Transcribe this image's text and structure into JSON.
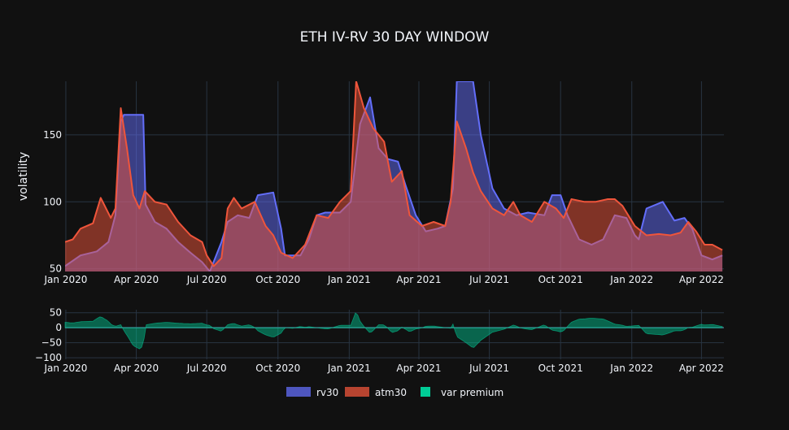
{
  "chart_data": {
    "type": "area",
    "title": "ETH IV-RV 30 DAY WINDOW",
    "colors": {
      "rv30": "#636efa",
      "atm30": "#ef553b",
      "premium": "#00cc96",
      "background": "#111111",
      "grid": "#283442"
    },
    "panels": {
      "main": {
        "ylabel": "volatility",
        "ylim": [
          48,
          190
        ],
        "yticks": [
          50,
          100,
          150
        ]
      },
      "sub": {
        "ylim": [
          -105,
          60
        ],
        "yticks": [
          50,
          0,
          -50,
          -100
        ],
        "ytick_labels": [
          "50",
          "0",
          "−50",
          "−100"
        ]
      }
    },
    "x_range": [
      "2019-12-31",
      "2022-04-30"
    ],
    "x_ticks": [
      {
        "date": "2020-01-01",
        "label": "Jan 2020"
      },
      {
        "date": "2020-04-01",
        "label": "Apr 2020"
      },
      {
        "date": "2020-07-01",
        "label": "Jul 2020"
      },
      {
        "date": "2020-10-01",
        "label": "Oct 2020"
      },
      {
        "date": "2021-01-01",
        "label": "Jan 2021"
      },
      {
        "date": "2021-04-01",
        "label": "Apr 2021"
      },
      {
        "date": "2021-07-01",
        "label": "Jul 2021"
      },
      {
        "date": "2021-10-01",
        "label": "Oct 2021"
      },
      {
        "date": "2022-01-01",
        "label": "Jan 2022"
      },
      {
        "date": "2022-04-01",
        "label": "Apr 2022"
      }
    ],
    "series": [
      {
        "name": "rv30",
        "points": [
          [
            "2019-12-31",
            52
          ],
          [
            "2020-01-20",
            60
          ],
          [
            "2020-02-10",
            63
          ],
          [
            "2020-02-25",
            70
          ],
          [
            "2020-03-05",
            90
          ],
          [
            "2020-03-12",
            160
          ],
          [
            "2020-03-16",
            165
          ],
          [
            "2020-04-10",
            165
          ],
          [
            "2020-04-13",
            98
          ],
          [
            "2020-04-25",
            85
          ],
          [
            "2020-05-10",
            80
          ],
          [
            "2020-05-25",
            70
          ],
          [
            "2020-06-10",
            62
          ],
          [
            "2020-06-25",
            55
          ],
          [
            "2020-07-05",
            48
          ],
          [
            "2020-07-20",
            70
          ],
          [
            "2020-07-28",
            85
          ],
          [
            "2020-08-10",
            90
          ],
          [
            "2020-08-25",
            88
          ],
          [
            "2020-09-05",
            105
          ],
          [
            "2020-09-25",
            107
          ],
          [
            "2020-10-05",
            80
          ],
          [
            "2020-10-10",
            60
          ],
          [
            "2020-10-30",
            60
          ],
          [
            "2020-11-10",
            72
          ],
          [
            "2020-11-20",
            90
          ],
          [
            "2020-12-01",
            92
          ],
          [
            "2020-12-20",
            92
          ],
          [
            "2021-01-03",
            100
          ],
          [
            "2021-01-15",
            158
          ],
          [
            "2021-01-28",
            178
          ],
          [
            "2021-02-08",
            140
          ],
          [
            "2021-02-20",
            132
          ],
          [
            "2021-03-05",
            130
          ],
          [
            "2021-03-15",
            112
          ],
          [
            "2021-03-28",
            90
          ],
          [
            "2021-04-10",
            78
          ],
          [
            "2021-04-25",
            80
          ],
          [
            "2021-05-05",
            82
          ],
          [
            "2021-05-15",
            110
          ],
          [
            "2021-05-20",
            190
          ],
          [
            "2021-06-10",
            190
          ],
          [
            "2021-06-20",
            150
          ],
          [
            "2021-07-05",
            110
          ],
          [
            "2021-07-20",
            95
          ],
          [
            "2021-08-05",
            90
          ],
          [
            "2021-08-20",
            92
          ],
          [
            "2021-09-10",
            90
          ],
          [
            "2021-09-20",
            105
          ],
          [
            "2021-10-01",
            105
          ],
          [
            "2021-10-10",
            90
          ],
          [
            "2021-10-25",
            72
          ],
          [
            "2021-11-10",
            68
          ],
          [
            "2021-11-25",
            72
          ],
          [
            "2021-12-10",
            90
          ],
          [
            "2021-12-25",
            88
          ],
          [
            "2022-01-05",
            75
          ],
          [
            "2022-01-10",
            72
          ],
          [
            "2022-01-20",
            95
          ],
          [
            "2022-02-10",
            100
          ],
          [
            "2022-02-25",
            86
          ],
          [
            "2022-03-10",
            88
          ],
          [
            "2022-03-20",
            80
          ],
          [
            "2022-04-01",
            60
          ],
          [
            "2022-04-15",
            57
          ],
          [
            "2022-04-28",
            60
          ]
        ]
      },
      {
        "name": "atm30",
        "points": [
          [
            "2019-12-31",
            70
          ],
          [
            "2020-01-10",
            72
          ],
          [
            "2020-01-20",
            80
          ],
          [
            "2020-02-05",
            84
          ],
          [
            "2020-02-15",
            103
          ],
          [
            "2020-02-28",
            88
          ],
          [
            "2020-03-05",
            95
          ],
          [
            "2020-03-12",
            170
          ],
          [
            "2020-03-20",
            140
          ],
          [
            "2020-03-28",
            105
          ],
          [
            "2020-04-05",
            95
          ],
          [
            "2020-04-12",
            108
          ],
          [
            "2020-04-25",
            100
          ],
          [
            "2020-05-10",
            98
          ],
          [
            "2020-05-25",
            85
          ],
          [
            "2020-06-10",
            75
          ],
          [
            "2020-06-25",
            70
          ],
          [
            "2020-07-01",
            60
          ],
          [
            "2020-07-10",
            52
          ],
          [
            "2020-07-20",
            58
          ],
          [
            "2020-07-28",
            95
          ],
          [
            "2020-08-05",
            103
          ],
          [
            "2020-08-15",
            95
          ],
          [
            "2020-09-01",
            100
          ],
          [
            "2020-09-15",
            82
          ],
          [
            "2020-09-25",
            75
          ],
          [
            "2020-10-05",
            62
          ],
          [
            "2020-10-20",
            58
          ],
          [
            "2020-11-05",
            68
          ],
          [
            "2020-11-20",
            90
          ],
          [
            "2020-12-05",
            88
          ],
          [
            "2020-12-20",
            100
          ],
          [
            "2021-01-03",
            108
          ],
          [
            "2021-01-10",
            190
          ],
          [
            "2021-01-20",
            170
          ],
          [
            "2021-02-01",
            155
          ],
          [
            "2021-02-15",
            145
          ],
          [
            "2021-02-25",
            115
          ],
          [
            "2021-03-10",
            123
          ],
          [
            "2021-03-20",
            90
          ],
          [
            "2021-04-05",
            82
          ],
          [
            "2021-04-20",
            85
          ],
          [
            "2021-05-05",
            82
          ],
          [
            "2021-05-12",
            100
          ],
          [
            "2021-05-20",
            160
          ],
          [
            "2021-06-01",
            140
          ],
          [
            "2021-06-10",
            122
          ],
          [
            "2021-06-20",
            108
          ],
          [
            "2021-07-05",
            95
          ],
          [
            "2021-07-20",
            90
          ],
          [
            "2021-08-01",
            100
          ],
          [
            "2021-08-10",
            90
          ],
          [
            "2021-08-25",
            85
          ],
          [
            "2021-09-10",
            100
          ],
          [
            "2021-09-25",
            95
          ],
          [
            "2021-10-05",
            88
          ],
          [
            "2021-10-15",
            102
          ],
          [
            "2021-11-01",
            100
          ],
          [
            "2021-11-15",
            100
          ],
          [
            "2021-12-01",
            102
          ],
          [
            "2021-12-10",
            102
          ],
          [
            "2021-12-20",
            97
          ],
          [
            "2022-01-05",
            82
          ],
          [
            "2022-01-20",
            75
          ],
          [
            "2022-02-05",
            76
          ],
          [
            "2022-02-20",
            75
          ],
          [
            "2022-03-05",
            77
          ],
          [
            "2022-03-15",
            85
          ],
          [
            "2022-03-25",
            78
          ],
          [
            "2022-04-05",
            68
          ],
          [
            "2022-04-15",
            68
          ],
          [
            "2022-04-28",
            64
          ]
        ]
      },
      {
        "name": "var premium"
      }
    ]
  }
}
